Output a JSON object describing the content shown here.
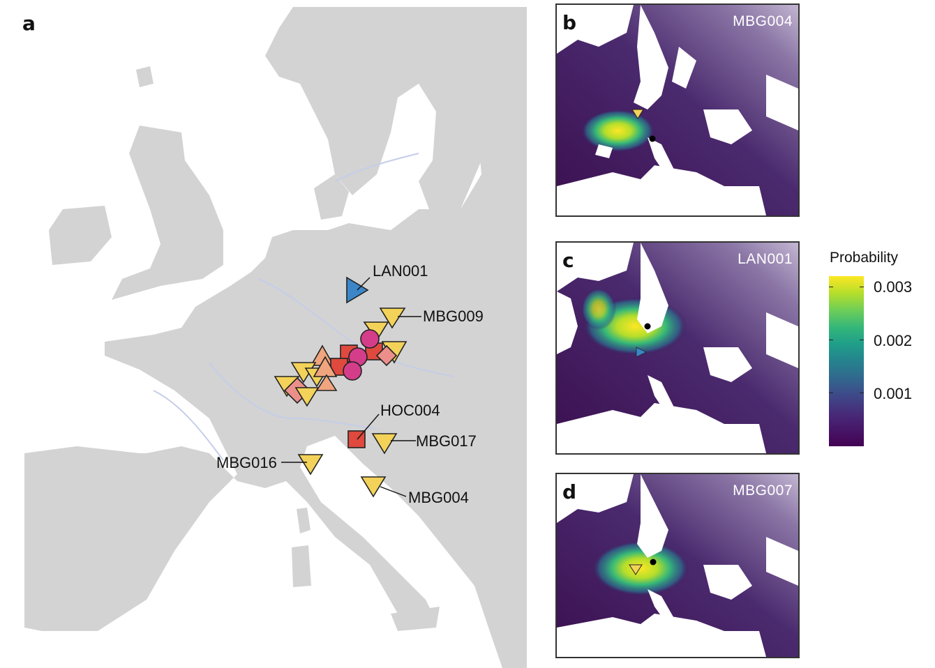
{
  "panels": {
    "a": {
      "letter": "a"
    },
    "b": {
      "letter": "b",
      "id": "MBG004"
    },
    "c": {
      "letter": "c",
      "id": "LAN001"
    },
    "d": {
      "letter": "d",
      "id": "MBG007"
    }
  },
  "site_labels": {
    "lan001": "LAN001",
    "mbg009": "MBG009",
    "hoc004": "HOC004",
    "mbg017": "MBG017",
    "mbg016": "MBG016",
    "mbg004": "MBG004"
  },
  "legend": {
    "title": "Probability",
    "ticks": [
      "0.003",
      "0.002",
      "0.001"
    ]
  },
  "colors": {
    "land": "#d3d3d3",
    "sea": "#ffffff",
    "rivers": "#c5cde8",
    "yellow_triangle": "#f3d259",
    "orange_triangle": "#f0a57e",
    "red_square": "#e0493e",
    "pink_diamond": "#ec8f8a",
    "magenta_circle": "#d43d8a",
    "blue_triangle": "#3b86c8",
    "viridis_low": "#440154",
    "viridis_high": "#fde725"
  }
}
